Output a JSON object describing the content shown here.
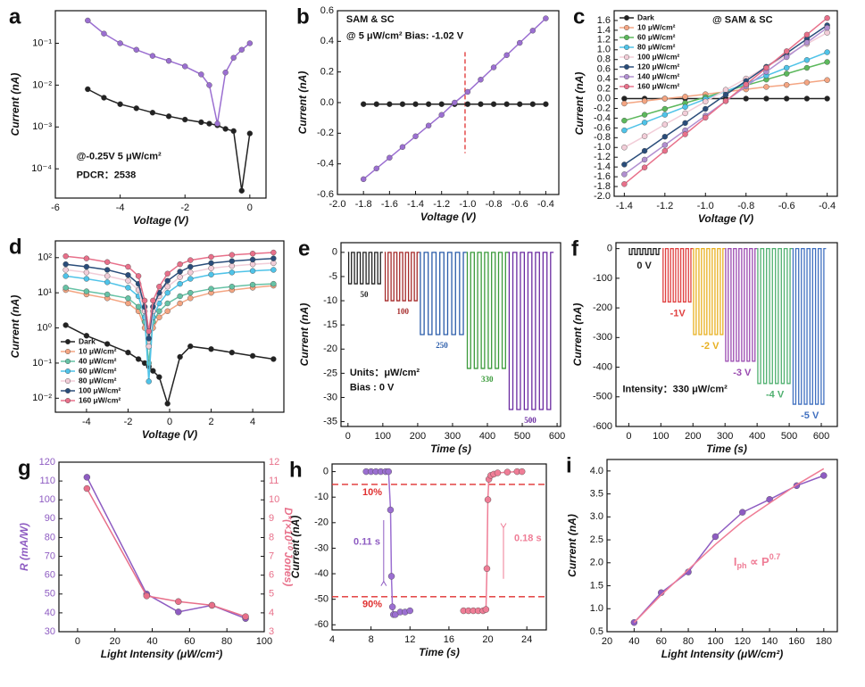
{
  "chart_data": [
    {
      "type": "line",
      "label": "a",
      "xlabel": "Voltage (V)",
      "ylabel": "Current (nA)",
      "log_y": true,
      "markers": true,
      "xlim": [
        -6,
        0.5
      ],
      "xticks": [
        -6,
        -4,
        -2,
        0
      ],
      "ylim": [
        2e-05,
        0.6
      ],
      "yticks": [
        {
          "value": 0.0001,
          "label": "10⁻⁴"
        },
        {
          "value": 0.001,
          "label": "10⁻³"
        },
        {
          "value": 0.01,
          "label": "10⁻²"
        },
        {
          "value": 0.1,
          "label": "10⁻¹"
        }
      ],
      "x": [
        -5,
        -4.5,
        -4,
        -3.5,
        -3,
        -2.5,
        -2,
        -1.5,
        -1.25,
        -1,
        -0.75,
        -0.5,
        -0.25,
        0
      ],
      "series": [
        {
          "color": "#222222",
          "values": [
            0.008,
            0.005,
            0.0035,
            0.0028,
            0.0022,
            0.0018,
            0.0015,
            0.0013,
            0.0012,
            0.0011,
            0.0009,
            0.0008,
            3e-05,
            0.0007
          ]
        },
        {
          "color": "#9b6fd1",
          "values": [
            0.35,
            0.17,
            0.1,
            0.07,
            0.05,
            0.038,
            0.028,
            0.018,
            0.01,
            0.0012,
            0.02,
            0.045,
            0.07,
            0.1
          ]
        }
      ],
      "annotations": [
        "@-0.25V   5 μW/cm²",
        "PDCR：2538"
      ]
    },
    {
      "type": "line",
      "label": "b",
      "xlabel": "Voltage (V)",
      "ylabel": "Current (nA)",
      "markers": true,
      "xlim": [
        -2.0,
        -0.3
      ],
      "xticks": [
        {
          "value": -2,
          "label": "-2.0"
        },
        -1.8,
        -1.6,
        -1.4,
        -1.2,
        {
          "value": -1,
          "label": "-1.0"
        },
        -0.8,
        -0.6,
        -0.4
      ],
      "ylim": [
        -0.6,
        0.6
      ],
      "yticks": [
        -0.6,
        -0.4,
        -0.2,
        {
          "value": 0,
          "label": "0.0"
        },
        0.2,
        0.4,
        0.6
      ],
      "x": [
        -1.8,
        -1.7,
        -1.6,
        -1.5,
        -1.4,
        -1.3,
        -1.2,
        -1.1,
        -1.0,
        -0.9,
        -0.8,
        -0.7,
        -0.6,
        -0.5,
        -0.4
      ],
      "series": [
        {
          "color": "#222222",
          "values": [
            -0.01,
            -0.01,
            -0.01,
            -0.01,
            -0.01,
            -0.01,
            -0.01,
            -0.01,
            -0.01,
            -0.01,
            -0.01,
            -0.01,
            -0.01,
            -0.01,
            -0.01
          ]
        },
        {
          "color": "#9b6fd1",
          "values": [
            -0.5,
            -0.43,
            -0.36,
            -0.29,
            -0.22,
            -0.15,
            -0.08,
            0,
            0.07,
            0.15,
            0.23,
            0.31,
            0.39,
            0.47,
            0.55
          ]
        }
      ],
      "vline": -1.02,
      "annotations": [
        "SAM & SC",
        "@ 5 μW/cm²  Bias: -1.02 V"
      ]
    },
    {
      "type": "line",
      "label": "c",
      "xlabel": "Voltage (V)",
      "ylabel": "Current (nA)",
      "markers": true,
      "legend": "upper left",
      "xlim": [
        -1.45,
        -0.35
      ],
      "xticks": [
        -1.4,
        -1.2,
        {
          "value": -1,
          "label": "-1.0"
        },
        -0.8,
        -0.6,
        -0.4
      ],
      "ylim": [
        -2.0,
        1.8
      ],
      "yticks": [
        {
          "value": -2,
          "label": "-2.0"
        },
        -1.8,
        -1.6,
        -1.4,
        -1.2,
        {
          "value": -1,
          "label": "-1.0"
        },
        -0.8,
        -0.6,
        -0.4,
        -0.2,
        {
          "value": 0,
          "label": "0.0"
        },
        0.2,
        0.4,
        0.6,
        0.8,
        {
          "value": 1,
          "label": "1.0"
        },
        1.2,
        1.4,
        1.6
      ],
      "x": [
        -1.4,
        -1.3,
        -1.2,
        -1.1,
        -1.0,
        -0.9,
        -0.8,
        -0.7,
        -0.6,
        -0.5,
        -0.4
      ],
      "series": [
        {
          "name": "Dark",
          "color": "#222222",
          "values": [
            0,
            0,
            0,
            0,
            0,
            0,
            0,
            0,
            0,
            0,
            0
          ]
        },
        {
          "name": "10 μW/cm²",
          "color": "#f4a582",
          "values": [
            -0.1,
            -0.05,
            0,
            0.04,
            0.09,
            0.14,
            0.19,
            0.24,
            0.28,
            0.33,
            0.38
          ]
        },
        {
          "name": "60 μW/cm²",
          "color": "#5cb85c",
          "values": [
            -0.45,
            -0.33,
            -0.21,
            -0.09,
            0.03,
            0.15,
            0.27,
            0.39,
            0.51,
            0.63,
            0.75
          ]
        },
        {
          "name": "80 μW/cm²",
          "color": "#4fc3e8",
          "values": [
            -0.65,
            -0.49,
            -0.33,
            -0.17,
            -0.01,
            0.15,
            0.31,
            0.47,
            0.63,
            0.79,
            0.95
          ]
        },
        {
          "name": "100 μW/cm²",
          "color": "#f2cdd8",
          "values": [
            -1.0,
            -0.77,
            -0.53,
            -0.3,
            -0.06,
            0.18,
            0.41,
            0.65,
            0.88,
            1.12,
            1.35
          ]
        },
        {
          "name": "120 μW/cm²",
          "color": "#2a4d7a",
          "values": [
            -1.35,
            -1.07,
            -0.78,
            -0.5,
            -0.21,
            0.08,
            0.36,
            0.65,
            0.93,
            1.22,
            1.5
          ]
        },
        {
          "name": "140 μW/cm²",
          "color": "#b18fd0",
          "values": [
            -1.55,
            -1.25,
            -0.95,
            -0.65,
            -0.35,
            -0.05,
            0.25,
            0.55,
            0.85,
            1.15,
            1.45
          ]
        },
        {
          "name": "160 μW/cm²",
          "color": "#e8708a",
          "values": [
            -1.75,
            -1.41,
            -1.07,
            -0.73,
            -0.39,
            -0.05,
            0.29,
            0.63,
            0.97,
            1.31,
            1.65
          ]
        }
      ],
      "annotations": [
        "@ SAM & SC"
      ]
    },
    {
      "type": "line",
      "label": "d",
      "xlabel": "Voltage (V)",
      "ylabel": "Current (nA)",
      "log_y": true,
      "markers": true,
      "legend": "lower left",
      "xlim": [
        -5.5,
        5.5
      ],
      "xticks": [
        -4,
        -2,
        0,
        2,
        4
      ],
      "ylim": [
        0.004,
        300
      ],
      "yticks": [
        {
          "value": 0.01,
          "label": "10⁻²"
        },
        {
          "value": 0.1,
          "label": "10⁻¹"
        },
        {
          "value": 1,
          "label": "10⁰"
        },
        {
          "value": 10,
          "label": "10¹"
        },
        {
          "value": 100,
          "label": "10²"
        }
      ],
      "x": [
        -5,
        -4,
        -3,
        -2,
        -1.5,
        -1.2,
        -1,
        -0.8,
        -0.5,
        -0.1,
        0.5,
        1,
        2,
        3,
        4,
        5
      ],
      "series": [
        {
          "name": "Dark",
          "color": "#222222",
          "values": [
            1.2,
            0.6,
            0.35,
            0.2,
            0.13,
            0.1,
            0.08,
            0.06,
            0.04,
            0.007,
            0.15,
            0.3,
            0.25,
            0.2,
            0.16,
            0.13
          ]
        },
        {
          "name": "10 μW/cm²",
          "color": "#f4a582",
          "values": [
            12,
            9,
            7,
            5,
            3,
            1,
            0.3,
            1,
            2,
            3,
            5,
            7,
            10,
            12,
            14,
            16
          ]
        },
        {
          "name": "40 μW/cm²",
          "color": "#66c2a5",
          "values": [
            14,
            11,
            9,
            7,
            4,
            1.5,
            0.1,
            1.5,
            3,
            5,
            8,
            10,
            13,
            15,
            17,
            18
          ]
        },
        {
          "name": "60 μW/cm²",
          "color": "#4fc3e8",
          "values": [
            30,
            25,
            20,
            14,
            8,
            2,
            0.03,
            2,
            5,
            10,
            18,
            25,
            33,
            38,
            42,
            45
          ]
        },
        {
          "name": "80 μW/cm²",
          "color": "#f2cdd8",
          "values": [
            45,
            38,
            30,
            22,
            12,
            3,
            0.3,
            3,
            8,
            15,
            28,
            38,
            50,
            58,
            65,
            70
          ]
        },
        {
          "name": "100 μW/cm²",
          "color": "#2a4d7a",
          "values": [
            65,
            55,
            45,
            32,
            18,
            4,
            0.5,
            4,
            10,
            22,
            40,
            55,
            70,
            80,
            88,
            95
          ]
        },
        {
          "name": "160 μW/cm²",
          "color": "#e8708a",
          "values": [
            110,
            95,
            75,
            55,
            30,
            6,
            0.8,
            6,
            15,
            35,
            65,
            85,
            105,
            120,
            130,
            140
          ]
        }
      ]
    },
    {
      "type": "pulse",
      "label": "e",
      "xlabel": "Time (s)",
      "ylabel": "Current (nA)",
      "xlim": [
        -20,
        610
      ],
      "xticks": [
        0,
        100,
        200,
        300,
        400,
        500,
        600
      ],
      "ylim": [
        -36,
        2
      ],
      "yticks": [
        0,
        -5,
        -10,
        -15,
        -20,
        -25,
        -30,
        -35
      ],
      "series": [
        {
          "name": "50",
          "color": "#222222",
          "start": 0,
          "end": 100,
          "pulses": 6,
          "level": -6.5
        },
        {
          "name": "100",
          "color": "#a52a2a",
          "start": 105,
          "end": 205,
          "pulses": 6,
          "level": -10
        },
        {
          "name": "250",
          "color": "#2a5caa",
          "start": 205,
          "end": 340,
          "pulses": 6,
          "level": -17
        },
        {
          "name": "330",
          "color": "#3a9a3a",
          "start": 340,
          "end": 460,
          "pulses": 6,
          "level": -24
        },
        {
          "name": "500",
          "color": "#6a2aa0",
          "start": 460,
          "end": 590,
          "pulses": 6,
          "level": -32.5
        }
      ],
      "annotations": [
        "Units：μW/cm²",
        "Bias :   0 V"
      ]
    },
    {
      "type": "pulse",
      "label": "f",
      "xlabel": "Time (s)",
      "ylabel": "Current (nA)",
      "xlim": [
        -40,
        650
      ],
      "xticks": [
        0,
        100,
        200,
        300,
        400,
        500,
        600
      ],
      "ylim": [
        -600,
        20
      ],
      "yticks": [
        0,
        -100,
        -200,
        -300,
        -400,
        -500,
        -600
      ],
      "series": [
        {
          "name": "0 V",
          "color": "#222222",
          "start": 0,
          "end": 100,
          "pulses": 6,
          "level": -20
        },
        {
          "name": "-1V",
          "color": "#e04040",
          "start": 105,
          "end": 200,
          "pulses": 6,
          "level": -180
        },
        {
          "name": "-2 V",
          "color": "#e8b020",
          "start": 200,
          "end": 300,
          "pulses": 6,
          "level": -290
        },
        {
          "name": "-3 V",
          "color": "#9a4ab0",
          "start": 300,
          "end": 400,
          "pulses": 6,
          "level": -380
        },
        {
          "name": "-4 V",
          "color": "#50b070",
          "start": 400,
          "end": 510,
          "pulses": 6,
          "level": -455
        },
        {
          "name": "-5 V",
          "color": "#4070c0",
          "start": 510,
          "end": 615,
          "pulses": 6,
          "level": -525
        }
      ],
      "annotations": [
        "Intensity：330 μW/cm²"
      ]
    },
    {
      "type": "line",
      "label": "g",
      "xlabel": "Light Intensity (μW/cm²)",
      "ylabel": "R (mA/W)",
      "y2label": "D*(×10¹⁰ Jones)",
      "markers": true,
      "xlim": [
        -10,
        100
      ],
      "xticks": [
        0,
        20,
        40,
        60,
        80,
        100
      ],
      "ylim": [
        30,
        120
      ],
      "yticks": [
        30,
        40,
        50,
        60,
        70,
        80,
        90,
        100,
        110,
        120
      ],
      "y2lim": [
        3,
        12
      ],
      "y2ticks": [
        3,
        4,
        5,
        6,
        7,
        8,
        9,
        10,
        11,
        12
      ],
      "x": [
        5,
        37,
        54,
        72,
        90
      ],
      "series": [
        {
          "color": "#8e5cc2",
          "values": [
            112,
            50,
            40.5,
            44,
            37
          ]
        },
        {
          "color": "#e8708a",
          "axis": "y2",
          "values": [
            10.6,
            4.9,
            4.6,
            4.4,
            3.8
          ]
        }
      ]
    },
    {
      "type": "line",
      "label": "h",
      "xlabel": "Time (s)",
      "ylabel": "Current (nA)",
      "markers": true,
      "xlim": [
        4,
        26
      ],
      "xticks": [
        4,
        8,
        12,
        16,
        20,
        24
      ],
      "ylim": [
        -62,
        3
      ],
      "yticks": [
        0,
        -10,
        -20,
        -30,
        -40,
        -50,
        -60
      ],
      "series": [
        {
          "color": "#9b6fd1",
          "x": [
            7.5,
            8,
            8.5,
            9,
            9.5,
            9.8,
            10,
            10.1,
            10.2,
            10.3,
            10.5,
            11,
            11.5,
            12
          ],
          "values": [
            0,
            0,
            0,
            0,
            0,
            0,
            -15,
            -41,
            -53,
            -56,
            -56,
            -55,
            -55,
            -54.5
          ]
        },
        {
          "color": "#ef7d96",
          "x": [
            17.5,
            18,
            18.5,
            19,
            19.5,
            19.8,
            19.9,
            20,
            20.1,
            20.3,
            20.6,
            21,
            22,
            23,
            23.5
          ],
          "values": [
            -54.5,
            -54.5,
            -54.5,
            -54.5,
            -54.5,
            -54,
            -38,
            -11,
            -3,
            -1.5,
            -1,
            -0.5,
            -0.2,
            0,
            0
          ]
        }
      ],
      "hlines": [
        {
          "value": -5,
          "label": "10%"
        },
        {
          "value": -49,
          "label": "90%"
        }
      ],
      "annotations": [
        "0.11 s",
        "0.18 s"
      ]
    },
    {
      "type": "line",
      "label": "i",
      "xlabel": "Light Intensity (μW/cm²)",
      "ylabel": "Current (nA)",
      "markers": true,
      "xlim": [
        20,
        190
      ],
      "xticks": [
        20,
        40,
        60,
        80,
        100,
        120,
        140,
        160,
        180
      ],
      "ylim": [
        0.5,
        4.25
      ],
      "yticks": [
        0.5,
        {
          "value": 1,
          "label": "1.0"
        },
        1.5,
        {
          "value": 2,
          "label": "2.0"
        },
        2.5,
        {
          "value": 3,
          "label": "3.0"
        },
        3.5,
        {
          "value": 4,
          "label": "4.0"
        }
      ],
      "x": [
        40,
        60,
        80,
        100,
        120,
        140,
        160,
        180
      ],
      "series": [
        {
          "color": "#8e5cc2",
          "values": [
            0.7,
            1.35,
            1.8,
            2.57,
            3.1,
            3.38,
            3.68,
            3.9
          ]
        },
        {
          "color": "#ef7d96",
          "nomarkers": true,
          "values": [
            0.7,
            1.3,
            1.85,
            2.4,
            2.9,
            3.3,
            3.7,
            4.05
          ]
        }
      ],
      "formula": {
        "base": "I",
        "sub": "ph",
        "mid": " ∝ P",
        "sup": "0.7"
      }
    }
  ]
}
